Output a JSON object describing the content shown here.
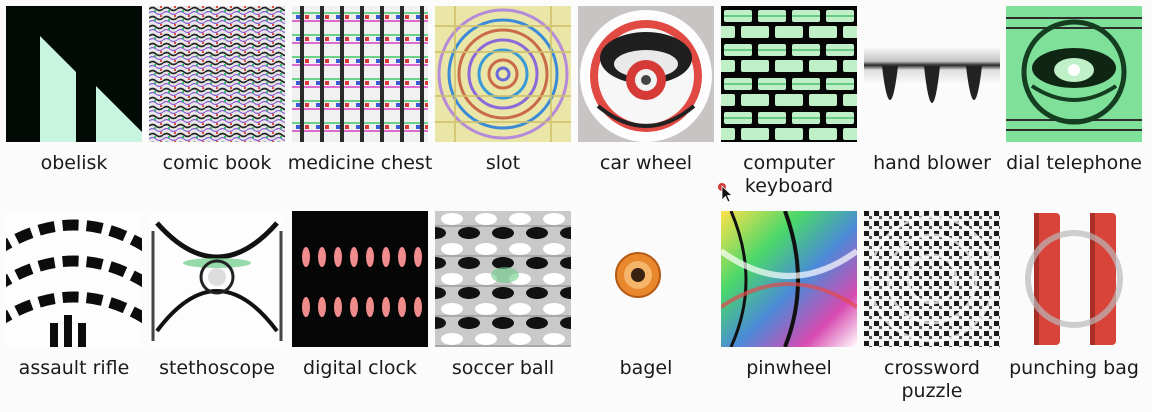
{
  "figure": {
    "rows": [
      {
        "items": [
          {
            "label": "obelisk",
            "icon": "obelisk-pattern"
          },
          {
            "label": "comic book",
            "icon": "comic-book-pattern"
          },
          {
            "label": "medicine chest",
            "icon": "medicine-chest-pattern"
          },
          {
            "label": "slot",
            "icon": "slot-pattern"
          },
          {
            "label": "car wheel",
            "icon": "car-wheel-pattern"
          },
          {
            "label": "computer keyboard",
            "icon": "computer-keyboard-pattern"
          },
          {
            "label": "hand blower",
            "icon": "hand-blower-pattern"
          },
          {
            "label": "dial telephone",
            "icon": "dial-telephone-pattern"
          }
        ]
      },
      {
        "items": [
          {
            "label": "assault rifle",
            "icon": "assault-rifle-pattern"
          },
          {
            "label": "stethoscope",
            "icon": "stethoscope-pattern"
          },
          {
            "label": "digital clock",
            "icon": "digital-clock-pattern"
          },
          {
            "label": "soccer ball",
            "icon": "soccer-ball-pattern"
          },
          {
            "label": "bagel",
            "icon": "bagel-pattern"
          },
          {
            "label": "pinwheel",
            "icon": "pinwheel-pattern"
          },
          {
            "label": "crossword puzzle",
            "icon": "crossword-puzzle-pattern"
          },
          {
            "label": "punching bag",
            "icon": "punching-bag-pattern"
          }
        ]
      }
    ]
  },
  "colors": {
    "background": "#fbfbfb",
    "caption": "#1a1a1a",
    "mint": "#c8f5e0",
    "green": "#7dd89c",
    "red": "#d9443a",
    "orange": "#e8872c"
  }
}
